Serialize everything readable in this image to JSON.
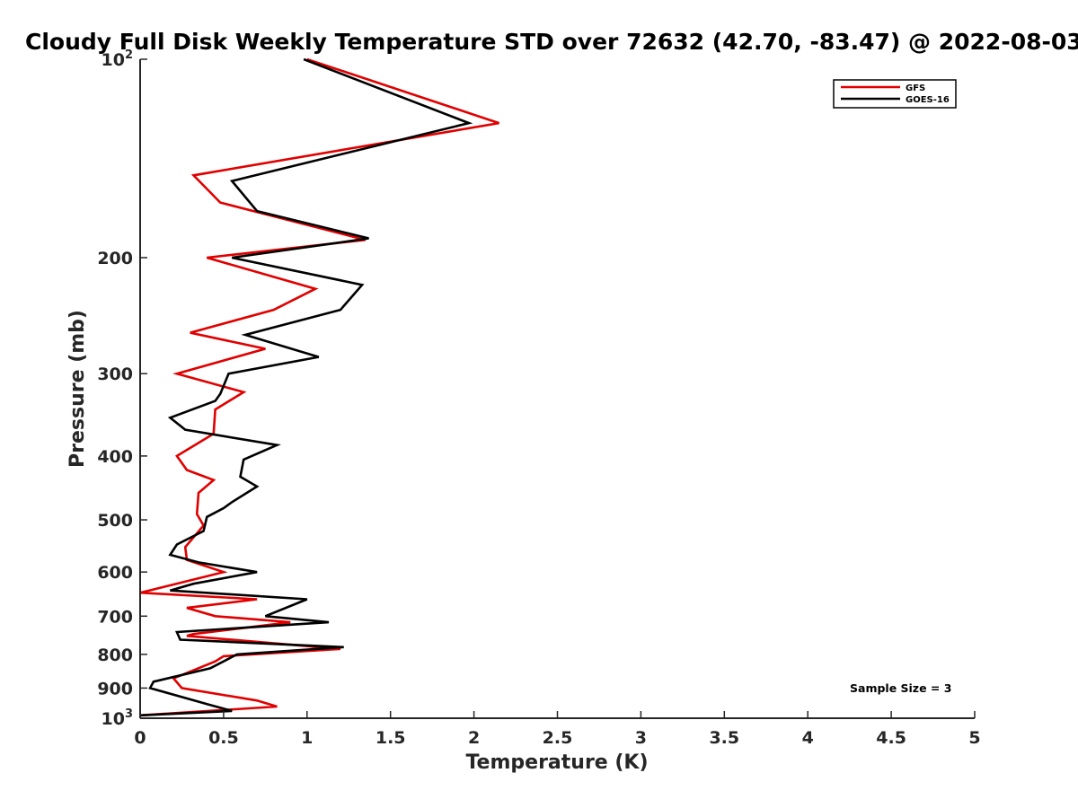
{
  "chart_data": {
    "type": "line",
    "title": "Cloudy Full Disk Weekly Temperature STD over 72632 (42.70, -83.47) @ 2022-08-03",
    "xlabel": "Temperature (K)",
    "ylabel": "Pressure (mb)",
    "xlim": [
      0,
      5
    ],
    "ylim": [
      100,
      1000
    ],
    "y_scale": "log",
    "y_reversed": true,
    "grid": false,
    "legend_position": "top-right",
    "x_ticks": [
      0,
      0.5,
      1,
      1.5,
      2,
      2.5,
      3,
      3.5,
      4,
      4.5,
      5
    ],
    "x_tick_labels": [
      "0",
      "0.5",
      "1",
      "1.5",
      "2",
      "2.5",
      "3",
      "3.5",
      "4",
      "4.5",
      "5"
    ],
    "y_ticks": [
      {
        "value": 100,
        "base": "10",
        "exp": "2"
      },
      {
        "value": 200,
        "label": "200"
      },
      {
        "value": 300,
        "label": "300"
      },
      {
        "value": 400,
        "label": "400"
      },
      {
        "value": 500,
        "label": "500"
      },
      {
        "value": 600,
        "label": "600"
      },
      {
        "value": 700,
        "label": "700"
      },
      {
        "value": 800,
        "label": "800"
      },
      {
        "value": 900,
        "label": "900"
      },
      {
        "value": 1000,
        "base": "10",
        "exp": "3"
      }
    ],
    "annotation": "Sample Size = 3",
    "series": [
      {
        "name": "GFS",
        "color": "#e00000",
        "points": [
          [
            1.0,
            100
          ],
          [
            2.15,
            125
          ],
          [
            0.32,
            150
          ],
          [
            0.48,
            165
          ],
          [
            1.35,
            188
          ],
          [
            0.4,
            200
          ],
          [
            1.05,
            223
          ],
          [
            0.8,
            240
          ],
          [
            0.3,
            260
          ],
          [
            0.75,
            275
          ],
          [
            0.22,
            300
          ],
          [
            0.62,
            320
          ],
          [
            0.45,
            340
          ],
          [
            0.44,
            370
          ],
          [
            0.22,
            400
          ],
          [
            0.28,
            420
          ],
          [
            0.44,
            435
          ],
          [
            0.35,
            455
          ],
          [
            0.34,
            490
          ],
          [
            0.38,
            510
          ],
          [
            0.27,
            550
          ],
          [
            0.28,
            575
          ],
          [
            0.5,
            600
          ],
          [
            0.0,
            645
          ],
          [
            0.7,
            660
          ],
          [
            0.28,
            680
          ],
          [
            0.45,
            700
          ],
          [
            0.9,
            715
          ],
          [
            0.32,
            745
          ],
          [
            0.28,
            750
          ],
          [
            1.2,
            785
          ],
          [
            0.5,
            805
          ],
          [
            0.45,
            820
          ],
          [
            0.2,
            870
          ],
          [
            0.25,
            900
          ],
          [
            0.7,
            940
          ],
          [
            0.82,
            960
          ],
          [
            0.0,
            990
          ]
        ]
      },
      {
        "name": "GOES-16",
        "color": "#000000",
        "points": [
          [
            0.98,
            100
          ],
          [
            1.97,
            125
          ],
          [
            0.55,
            153
          ],
          [
            0.7,
            170
          ],
          [
            1.37,
            187
          ],
          [
            0.55,
            200
          ],
          [
            1.33,
            220
          ],
          [
            1.2,
            240
          ],
          [
            0.63,
            262
          ],
          [
            1.07,
            283
          ],
          [
            0.53,
            300
          ],
          [
            0.48,
            322
          ],
          [
            0.45,
            330
          ],
          [
            0.18,
            350
          ],
          [
            0.27,
            365
          ],
          [
            0.82,
            385
          ],
          [
            0.62,
            405
          ],
          [
            0.6,
            430
          ],
          [
            0.7,
            445
          ],
          [
            0.55,
            470
          ],
          [
            0.5,
            480
          ],
          [
            0.4,
            495
          ],
          [
            0.38,
            520
          ],
          [
            0.22,
            545
          ],
          [
            0.18,
            565
          ],
          [
            0.35,
            580
          ],
          [
            0.7,
            600
          ],
          [
            0.32,
            625
          ],
          [
            0.18,
            640
          ],
          [
            1.0,
            660
          ],
          [
            0.75,
            700
          ],
          [
            1.13,
            715
          ],
          [
            0.22,
            740
          ],
          [
            0.24,
            760
          ],
          [
            1.22,
            780
          ],
          [
            0.58,
            800
          ],
          [
            0.42,
            840
          ],
          [
            0.08,
            880
          ],
          [
            0.06,
            900
          ],
          [
            0.42,
            955
          ],
          [
            0.55,
            975
          ],
          [
            0.0,
            990
          ]
        ]
      }
    ]
  }
}
